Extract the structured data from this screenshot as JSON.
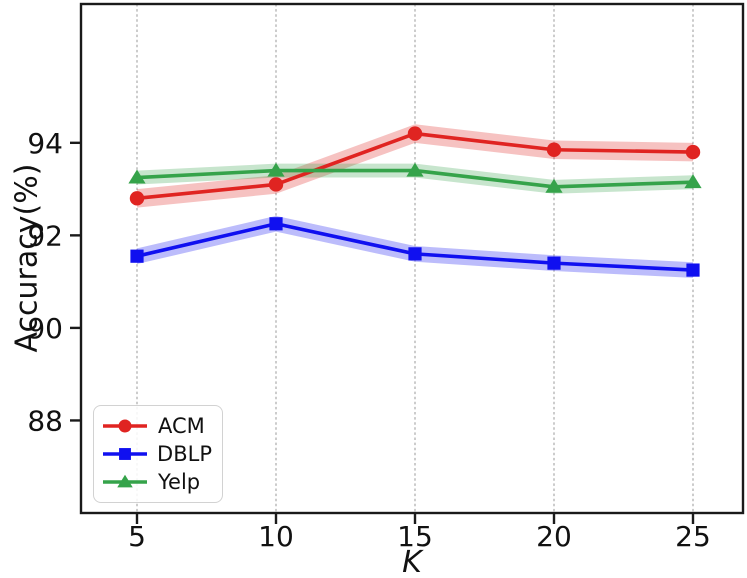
{
  "figure": {
    "background": "#ffffff",
    "axis_color": "#1a1a1a",
    "grid_color": "#aaaaaa"
  },
  "chart_data": {
    "type": "line",
    "title": "",
    "xlabel": "K",
    "ylabel": "Accuracy(%)",
    "x": [
      5,
      10,
      15,
      20,
      25
    ],
    "xticks": [
      5,
      10,
      15,
      20,
      25
    ],
    "yticks": [
      88,
      90,
      92,
      94
    ],
    "xlim": [
      3,
      27
    ],
    "ylim": [
      86,
      97
    ],
    "grid": "vertical-dashed",
    "legend_position": "lower-left",
    "series": [
      {
        "name": "ACM",
        "color": "#e02421",
        "marker": "circle",
        "band": 0.2,
        "values": [
          92.8,
          93.1,
          94.2,
          93.85,
          93.8
        ]
      },
      {
        "name": "DBLP",
        "color": "#1010f0",
        "marker": "square",
        "band": 0.17,
        "values": [
          91.55,
          92.25,
          91.6,
          91.4,
          91.25
        ]
      },
      {
        "name": "Yelp",
        "color": "#35a34a",
        "marker": "triangle",
        "band": 0.15,
        "values": [
          93.25,
          93.4,
          93.4,
          93.05,
          93.15
        ]
      }
    ]
  }
}
